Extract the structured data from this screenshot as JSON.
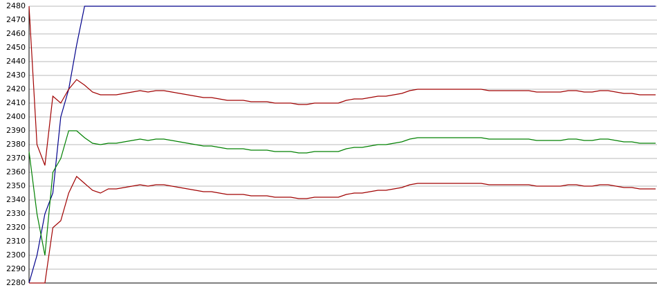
{
  "chart_data": {
    "type": "line",
    "categories": [
      null,
      null,
      null,
      null,
      null,
      null,
      null,
      null,
      null,
      null,
      null,
      null,
      null,
      null,
      null,
      null,
      null,
      null,
      null,
      null,
      null,
      null,
      null,
      null,
      null,
      null,
      null,
      null,
      null,
      null,
      null,
      null,
      null,
      null,
      null,
      null,
      null,
      null,
      null,
      null,
      null,
      null,
      null,
      null,
      null,
      null,
      null,
      null,
      null,
      null,
      null,
      null,
      null,
      null,
      null,
      null,
      null,
      null,
      null,
      null,
      null,
      null,
      null,
      null,
      null,
      null,
      null,
      null,
      null,
      null,
      null,
      null,
      null,
      null,
      null,
      null,
      null,
      null,
      null,
      null
    ],
    "series": [
      {
        "color": "#00008b",
        "values": [
          2280,
          2300,
          2330,
          2345,
          2400,
          2420,
          2452,
          2480,
          2480,
          2480,
          2480,
          2480,
          2480,
          2480,
          2480,
          2480,
          2480,
          2480,
          2480,
          2480,
          2480,
          2480,
          2480,
          2480,
          2480,
          2480,
          2480,
          2480,
          2480,
          2480,
          2480,
          2480,
          2480,
          2480,
          2480,
          2480,
          2480,
          2480,
          2480,
          2480,
          2480,
          2480,
          2480,
          2480,
          2480,
          2480,
          2480,
          2480,
          2480,
          2480,
          2480,
          2480,
          2480,
          2480,
          2480,
          2480,
          2480,
          2480,
          2480,
          2480,
          2480,
          2480,
          2480,
          2480,
          2480,
          2480,
          2480,
          2480,
          2480,
          2480,
          2480,
          2480,
          2480,
          2480,
          2480,
          2480,
          2480,
          2480,
          2480,
          2480
        ]
      },
      {
        "color": "#a00000",
        "values": [
          2480,
          2380,
          2365,
          2415,
          2410,
          2420,
          2427,
          2423,
          2418,
          2416,
          2416,
          2416,
          2417,
          2418,
          2419,
          2418,
          2419,
          2419,
          2418,
          2417,
          2416,
          2415,
          2414,
          2414,
          2413,
          2412,
          2412,
          2412,
          2411,
          2411,
          2411,
          2410,
          2410,
          2410,
          2409,
          2409,
          2410,
          2410,
          2410,
          2410,
          2412,
          2413,
          2413,
          2414,
          2415,
          2415,
          2416,
          2417,
          2419,
          2420,
          2420,
          2420,
          2420,
          2420,
          2420,
          2420,
          2420,
          2420,
          2419,
          2419,
          2419,
          2419,
          2419,
          2419,
          2418,
          2418,
          2418,
          2418,
          2419,
          2419,
          2418,
          2418,
          2419,
          2419,
          2418,
          2417,
          2417,
          2416,
          2416,
          2416
        ]
      },
      {
        "color": "#008000",
        "values": [
          2375,
          2330,
          2300,
          2360,
          2370,
          2390,
          2390,
          2385,
          2381,
          2380,
          2381,
          2381,
          2382,
          2383,
          2384,
          2383,
          2384,
          2384,
          2383,
          2382,
          2381,
          2380,
          2379,
          2379,
          2378,
          2377,
          2377,
          2377,
          2376,
          2376,
          2376,
          2375,
          2375,
          2375,
          2374,
          2374,
          2375,
          2375,
          2375,
          2375,
          2377,
          2378,
          2378,
          2379,
          2380,
          2380,
          2381,
          2382,
          2384,
          2385,
          2385,
          2385,
          2385,
          2385,
          2385,
          2385,
          2385,
          2385,
          2384,
          2384,
          2384,
          2384,
          2384,
          2384,
          2383,
          2383,
          2383,
          2383,
          2384,
          2384,
          2383,
          2383,
          2384,
          2384,
          2383,
          2382,
          2382,
          2381,
          2381,
          2381
        ]
      },
      {
        "color": "#a00000",
        "values": [
          2280,
          2280,
          2280,
          2320,
          2325,
          2345,
          2357,
          2352,
          2347,
          2345,
          2348,
          2348,
          2349,
          2350,
          2351,
          2350,
          2351,
          2351,
          2350,
          2349,
          2348,
          2347,
          2346,
          2346,
          2345,
          2344,
          2344,
          2344,
          2343,
          2343,
          2343,
          2342,
          2342,
          2342,
          2341,
          2341,
          2342,
          2342,
          2342,
          2342,
          2344,
          2345,
          2345,
          2346,
          2347,
          2347,
          2348,
          2349,
          2351,
          2352,
          2352,
          2352,
          2352,
          2352,
          2352,
          2352,
          2352,
          2352,
          2351,
          2351,
          2351,
          2351,
          2351,
          2351,
          2350,
          2350,
          2350,
          2350,
          2351,
          2351,
          2350,
          2350,
          2351,
          2351,
          2350,
          2349,
          2349,
          2348,
          2348,
          2348
        ]
      }
    ],
    "ylim": [
      2280,
      2480
    ],
    "yticks": [
      2280,
      2290,
      2300,
      2310,
      2320,
      2330,
      2340,
      2350,
      2360,
      2370,
      2380,
      2390,
      2400,
      2410,
      2420,
      2430,
      2440,
      2450,
      2460,
      2470,
      2480
    ],
    "grid": true
  }
}
